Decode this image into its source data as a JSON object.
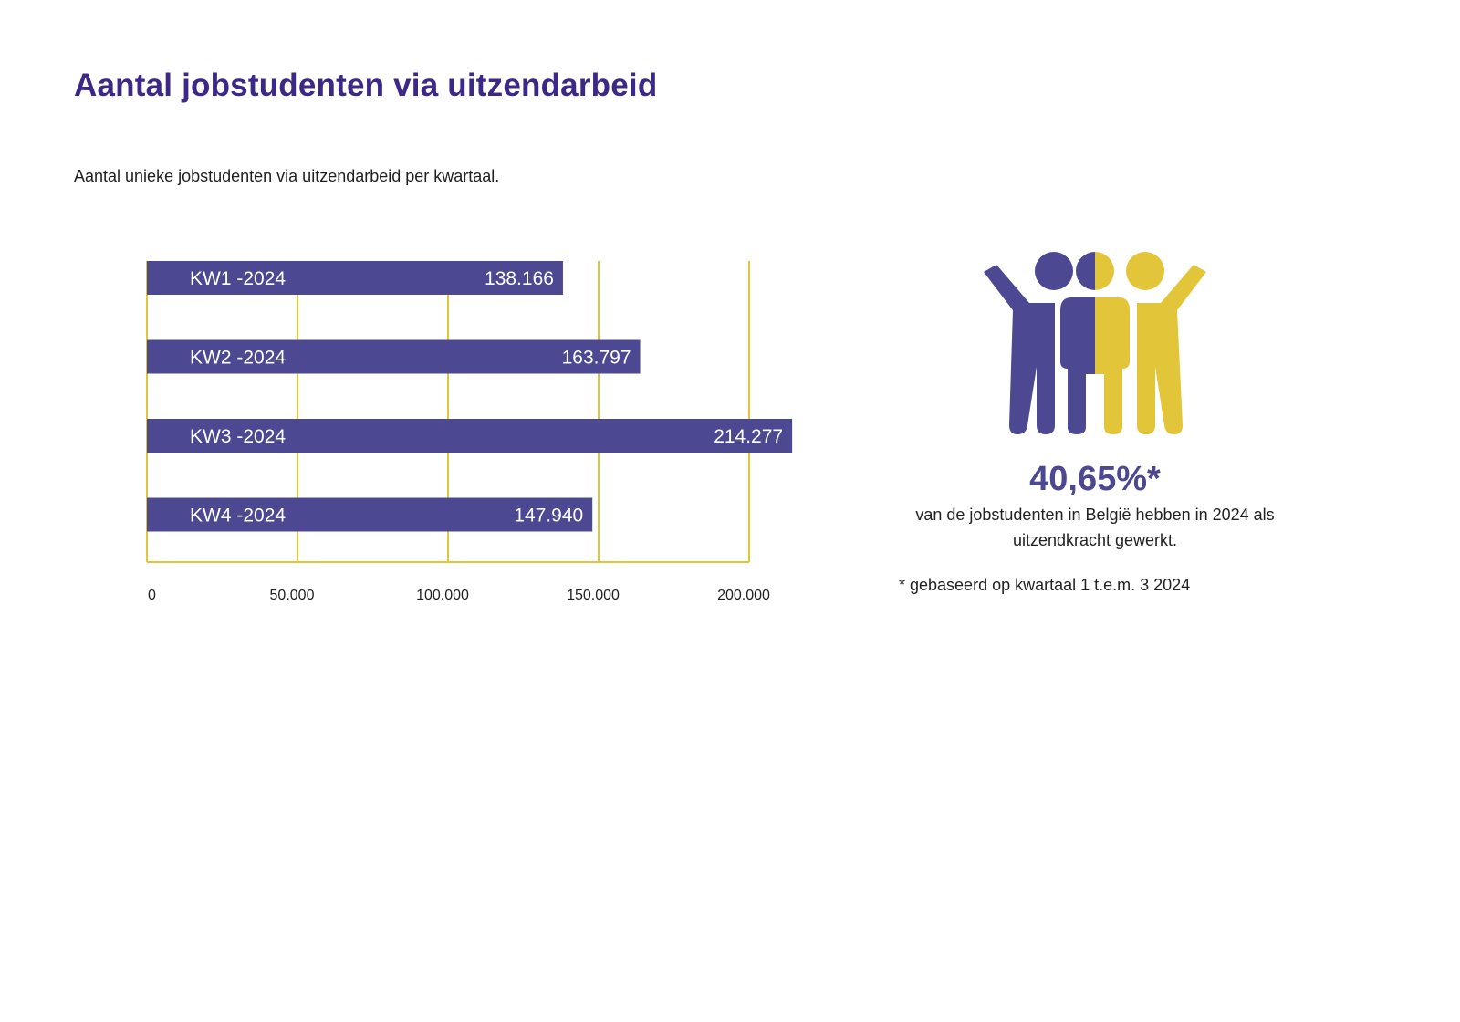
{
  "title": "Aantal jobstudenten via uitzendarbeid",
  "subtitle": "Aantal unieke jobstudenten via uitzendarbeid per kwartaal.",
  "colors": {
    "bar": "#4c4892",
    "grid": "#e3c53a",
    "title": "#3d2787",
    "yellow": "#e3c53a"
  },
  "chart_data": {
    "type": "bar",
    "orientation": "horizontal",
    "categories": [
      "KW1 -2024",
      "KW2 -2024",
      "KW3 -2024",
      "KW4 -2024"
    ],
    "values": [
      138166,
      163797,
      214277,
      147940
    ],
    "value_labels": [
      "138.166",
      "163.797",
      "214.277",
      "147.940"
    ],
    "xlim": [
      0,
      200000
    ],
    "xticks": [
      0,
      50000,
      100000,
      150000,
      200000
    ],
    "xtick_labels": [
      "0",
      "50.000",
      "100.000",
      "150.000",
      "200.000"
    ],
    "grid": true
  },
  "stat": {
    "icon": "people-cheering-icon",
    "value": "40,65%*",
    "description": "van de jobstudenten in België hebben in 2024 als uitzendkracht gewerkt.",
    "footnote": "* gebaseerd op kwartaal 1 t.e.m. 3 2024"
  }
}
